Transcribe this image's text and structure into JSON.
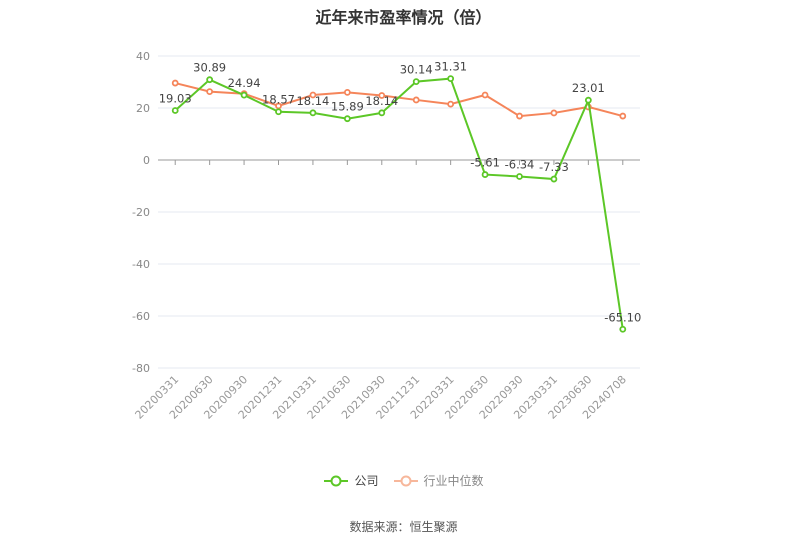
{
  "chart_data": {
    "type": "line",
    "title": "近年来市盈率情况（倍）",
    "xlabel": "",
    "ylabel": "",
    "ylim": [
      -80,
      40
    ],
    "yticks": [
      40,
      20,
      0,
      -20,
      -40,
      -60,
      -80
    ],
    "grid": true,
    "legend_position": "bottom",
    "categories": [
      "20200331",
      "20200630",
      "20200930",
      "20201231",
      "20210331",
      "20210630",
      "20210930",
      "20211231",
      "20220331",
      "20220630",
      "20220930",
      "20230331",
      "20230630",
      "20240708"
    ],
    "series": [
      {
        "name": "公司",
        "color": "#5cc727",
        "labeled": true,
        "values": [
          19.03,
          30.89,
          24.94,
          18.57,
          18.14,
          15.89,
          18.14,
          30.14,
          31.31,
          -5.61,
          -6.34,
          -7.33,
          23.01,
          -65.1
        ]
      },
      {
        "name": "行业中位数",
        "color": "#f5855a",
        "labeled": false,
        "values": [
          29.6,
          26.3,
          25.5,
          20.8,
          25.0,
          26.0,
          24.8,
          23.1,
          21.5,
          25.0,
          16.9,
          18.1,
          20.4,
          16.9
        ]
      }
    ]
  },
  "legend": {
    "company_label": "公司",
    "industry_label": "行业中位数"
  },
  "footer": {
    "source": "数据来源：恒生聚源"
  }
}
